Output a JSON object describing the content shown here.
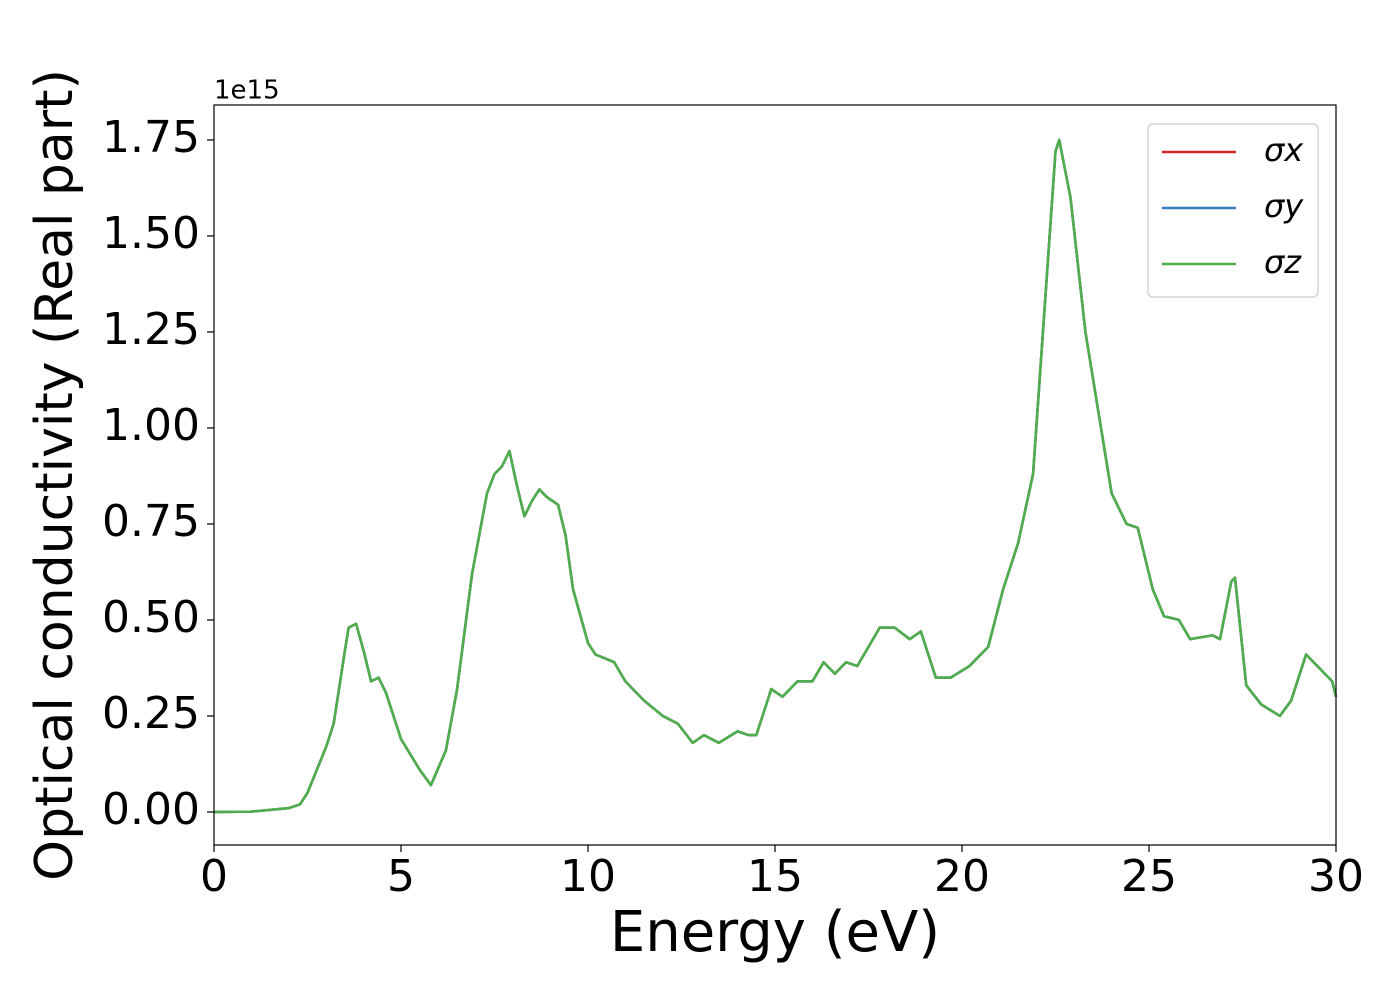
{
  "chart_data": {
    "type": "line",
    "x_label": "Energy (eV)",
    "y_label": "Optical conductivity (Real part)",
    "y_offset_label": "1e15",
    "x": [
      0,
      1,
      2,
      2.3,
      2.5,
      3,
      3.2,
      3.5,
      3.6,
      3.8,
      4,
      4.2,
      4.4,
      4.6,
      5,
      5.5,
      5.8,
      6.2,
      6.5,
      6.9,
      7.3,
      7.5,
      7.7,
      7.9,
      8.1,
      8.3,
      8.5,
      8.7,
      8.9,
      9.2,
      9.4,
      9.6,
      10,
      10.2,
      10.7,
      11,
      11.5,
      12,
      12.4,
      12.8,
      13.1,
      13.5,
      14,
      14.3,
      14.5,
      14.9,
      15.2,
      15.6,
      16,
      16.3,
      16.6,
      16.9,
      17.2,
      17.5,
      17.8,
      18.2,
      18.6,
      18.9,
      19.3,
      19.7,
      20.2,
      20.7,
      21.1,
      21.5,
      21.9,
      22.2,
      22.5,
      22.6,
      22.9,
      23.3,
      23.6,
      24,
      24.4,
      24.7,
      25.1,
      25.4,
      25.8,
      26.1,
      26.7,
      26.9,
      27.2,
      27.3,
      27.6,
      28,
      28.5,
      28.8,
      29.2,
      29.6,
      29.9,
      30
    ],
    "series": [
      {
        "name": "σx",
        "color": "#d62728",
        "values": [
          0,
          0.001,
          0.01,
          0.02,
          0.05,
          0.17,
          0.23,
          0.42,
          0.48,
          0.49,
          0.42,
          0.34,
          0.35,
          0.31,
          0.19,
          0.11,
          0.07,
          0.16,
          0.32,
          0.62,
          0.83,
          0.88,
          0.9,
          0.94,
          0.85,
          0.77,
          0.81,
          0.84,
          0.82,
          0.8,
          0.72,
          0.58,
          0.44,
          0.41,
          0.39,
          0.34,
          0.29,
          0.25,
          0.23,
          0.18,
          0.2,
          0.18,
          0.21,
          0.2,
          0.2,
          0.32,
          0.3,
          0.34,
          0.34,
          0.39,
          0.36,
          0.39,
          0.38,
          0.43,
          0.48,
          0.48,
          0.45,
          0.47,
          0.35,
          0.35,
          0.38,
          0.43,
          0.58,
          0.7,
          0.88,
          1.3,
          1.72,
          1.75,
          1.6,
          1.25,
          1.07,
          0.83,
          0.75,
          0.74,
          0.58,
          0.51,
          0.5,
          0.45,
          0.46,
          0.45,
          0.6,
          0.61,
          0.33,
          0.28,
          0.25,
          0.29,
          0.41,
          0.37,
          0.34,
          0.3
        ]
      },
      {
        "name": "σy",
        "color": "#377eb8",
        "values": [
          0,
          0.001,
          0.01,
          0.02,
          0.05,
          0.17,
          0.23,
          0.42,
          0.48,
          0.49,
          0.42,
          0.34,
          0.35,
          0.31,
          0.19,
          0.11,
          0.07,
          0.16,
          0.32,
          0.62,
          0.83,
          0.88,
          0.9,
          0.94,
          0.85,
          0.77,
          0.81,
          0.84,
          0.82,
          0.8,
          0.72,
          0.58,
          0.44,
          0.41,
          0.39,
          0.34,
          0.29,
          0.25,
          0.23,
          0.18,
          0.2,
          0.18,
          0.21,
          0.2,
          0.2,
          0.32,
          0.3,
          0.34,
          0.34,
          0.39,
          0.36,
          0.39,
          0.38,
          0.43,
          0.48,
          0.48,
          0.45,
          0.47,
          0.35,
          0.35,
          0.38,
          0.43,
          0.58,
          0.7,
          0.88,
          1.3,
          1.72,
          1.75,
          1.6,
          1.25,
          1.07,
          0.83,
          0.75,
          0.74,
          0.58,
          0.51,
          0.5,
          0.45,
          0.46,
          0.45,
          0.6,
          0.61,
          0.33,
          0.28,
          0.25,
          0.29,
          0.41,
          0.37,
          0.34,
          0.3
        ]
      },
      {
        "name": "σz",
        "color": "#4daf4a",
        "values": [
          0,
          0.001,
          0.01,
          0.02,
          0.05,
          0.17,
          0.23,
          0.42,
          0.48,
          0.49,
          0.42,
          0.34,
          0.35,
          0.31,
          0.19,
          0.11,
          0.07,
          0.16,
          0.32,
          0.62,
          0.83,
          0.88,
          0.9,
          0.94,
          0.85,
          0.77,
          0.81,
          0.84,
          0.82,
          0.8,
          0.72,
          0.58,
          0.44,
          0.41,
          0.39,
          0.34,
          0.29,
          0.25,
          0.23,
          0.18,
          0.2,
          0.18,
          0.21,
          0.2,
          0.2,
          0.32,
          0.3,
          0.34,
          0.34,
          0.39,
          0.36,
          0.39,
          0.38,
          0.43,
          0.48,
          0.48,
          0.45,
          0.47,
          0.35,
          0.35,
          0.38,
          0.43,
          0.58,
          0.7,
          0.88,
          1.3,
          1.72,
          1.75,
          1.6,
          1.25,
          1.07,
          0.83,
          0.75,
          0.74,
          0.58,
          0.51,
          0.5,
          0.45,
          0.46,
          0.45,
          0.6,
          0.61,
          0.33,
          0.28,
          0.25,
          0.29,
          0.41,
          0.37,
          0.34,
          0.3
        ]
      }
    ],
    "xlim": [
      0,
      30
    ],
    "xticks": [
      0,
      5,
      10,
      15,
      20,
      25,
      30
    ],
    "ylim": [
      -0.086,
      1.841
    ],
    "yticks": [
      {
        "value": 0,
        "label": "0.00"
      },
      0.25,
      {
        "value": 0.5,
        "label": "0.50"
      },
      0.75,
      {
        "value": 1,
        "label": "1.00"
      },
      1.25,
      {
        "value": 1.5,
        "label": "1.50"
      },
      1.75
    ],
    "grid": false,
    "legend": "upper right"
  }
}
